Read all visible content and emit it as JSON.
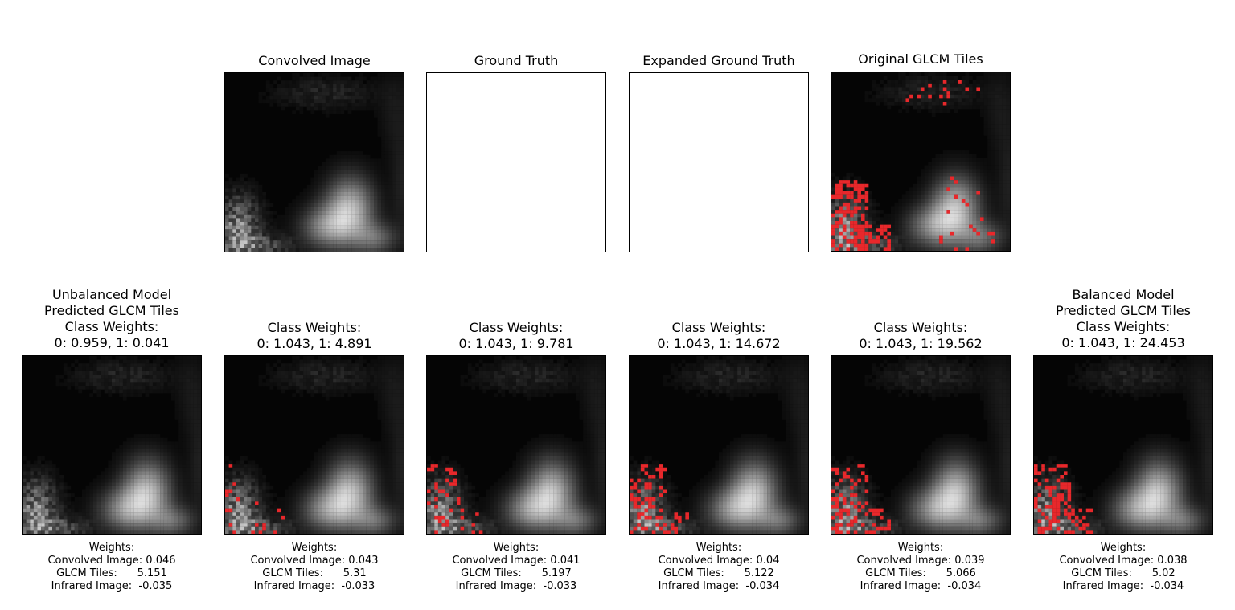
{
  "top_panels": [
    {
      "id": "convolved",
      "title": "Convolved Image",
      "kind": "gray"
    },
    {
      "id": "ground_truth",
      "title": "Ground Truth",
      "kind": "blank"
    },
    {
      "id": "expanded_ground_truth",
      "title": "Expanded Ground Truth",
      "kind": "blank"
    },
    {
      "id": "original_glcm",
      "title": "Original GLCM Tiles",
      "kind": "red",
      "red_density": 0.55
    }
  ],
  "bottom_panels": [
    {
      "title": "Unbalanced Model\nPredicted GLCM Tiles\nClass Weights:\n0: 0.959, 1: 0.041",
      "red_density": 0.0,
      "weights": {
        "header": "Weights:",
        "convolved": "Convolved Image: 0.046",
        "glcm": "GLCM Tiles:      5.151",
        "infrared": "Infrared Image:  -0.035"
      }
    },
    {
      "title": "Class Weights:\n0: 1.043, 1: 4.891",
      "red_density": 0.08,
      "weights": {
        "header": "Weights:",
        "convolved": "Convolved Image: 0.043",
        "glcm": "GLCM Tiles:      5.31",
        "infrared": "Infrared Image:  -0.033"
      }
    },
    {
      "title": "Class Weights:\n0: 1.043, 1: 9.781",
      "red_density": 0.18,
      "weights": {
        "header": "Weights:",
        "convolved": "Convolved Image: 0.041",
        "glcm": "GLCM Tiles:      5.197",
        "infrared": "Infrared Image:  -0.033"
      }
    },
    {
      "title": "Class Weights:\n0: 1.043, 1: 14.672",
      "red_density": 0.26,
      "weights": {
        "header": "Weights:",
        "convolved": "Convolved Image: 0.04",
        "glcm": "GLCM Tiles:      5.122",
        "infrared": "Infrared Image:  -0.034"
      }
    },
    {
      "title": "Class Weights:\n0: 1.043, 1: 19.562",
      "red_density": 0.32,
      "weights": {
        "header": "Weights:",
        "convolved": "Convolved Image: 0.039",
        "glcm": "GLCM Tiles:      5.066",
        "infrared": "Infrared Image:  -0.034"
      }
    },
    {
      "title": "Balanced Model\nPredicted GLCM Tiles\nClass Weights:\n0: 1.043, 1: 24.453",
      "red_density": 0.38,
      "weights": {
        "header": "Weights:",
        "convolved": "Convolved Image: 0.038",
        "glcm": "GLCM Tiles:      5.02",
        "infrared": "Infrared Image:  -0.034"
      }
    }
  ],
  "colors": {
    "overlay_red": "#e8282b",
    "background_dark": "#050505",
    "border": "#000000"
  }
}
